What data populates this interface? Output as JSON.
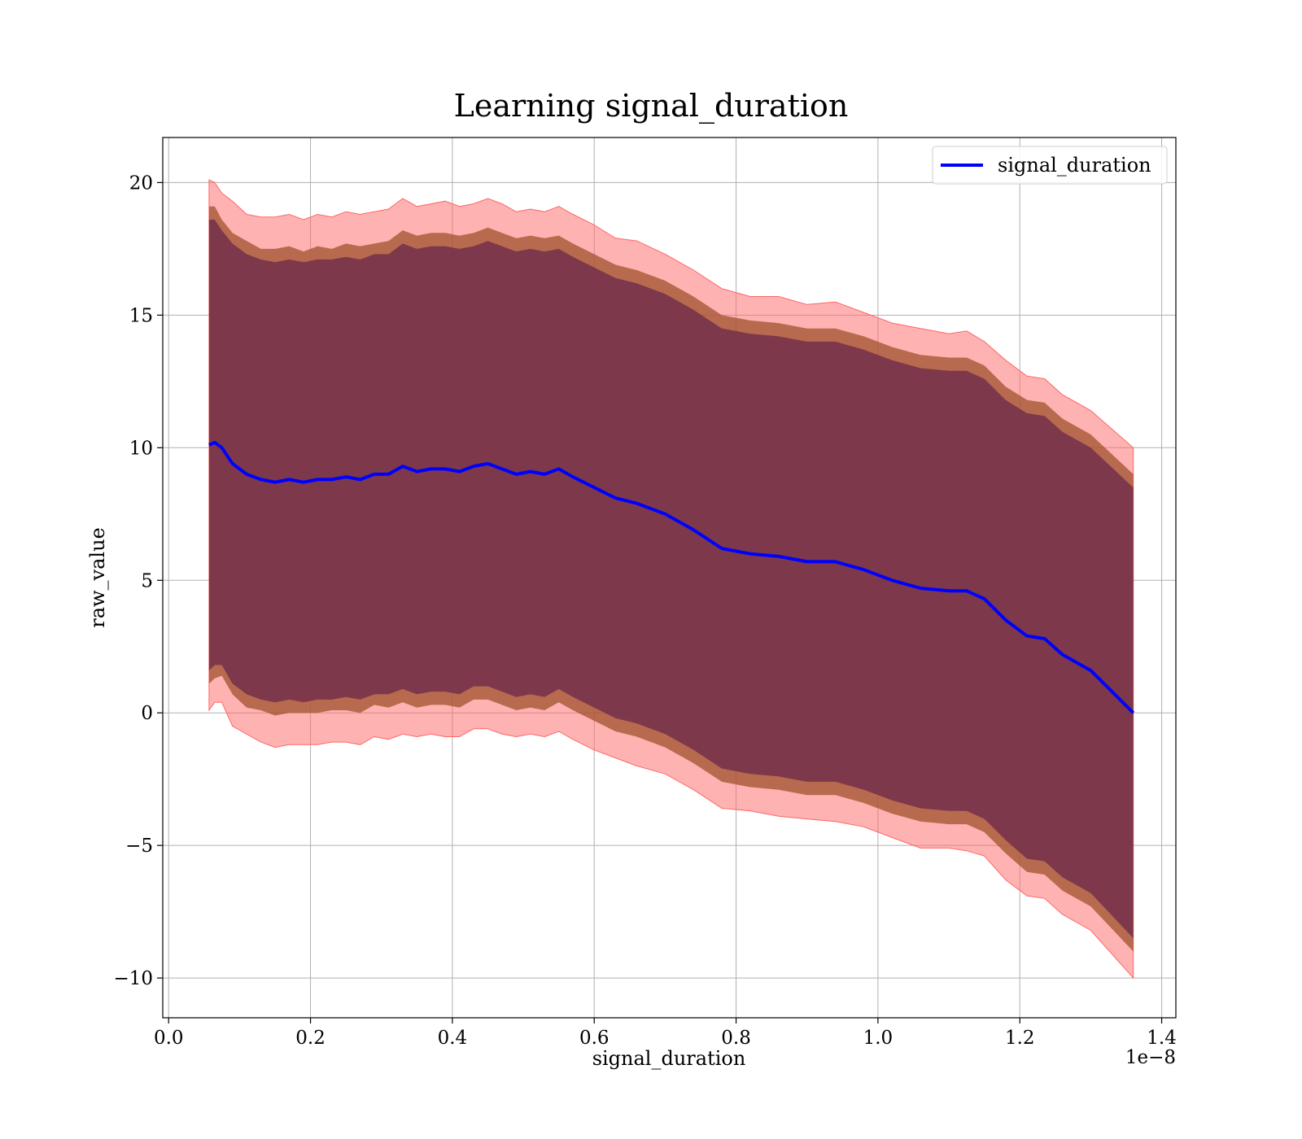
{
  "chart_data": {
    "type": "line",
    "title": "Learning signal_duration",
    "xlabel": "signal_duration",
    "ylabel": "raw_value",
    "x_offset_label": "1e−8",
    "xlim": [
      -0.0083,
      1.42
    ],
    "ylim": [
      -11.5,
      21.7
    ],
    "xticks": [
      0.0,
      0.2,
      0.4,
      0.6,
      0.8,
      1.0,
      1.2,
      1.4
    ],
    "xtick_labels": [
      "0.0",
      "0.2",
      "0.4",
      "0.6",
      "0.8",
      "1.0",
      "1.2",
      "1.4"
    ],
    "yticks": [
      -10,
      -5,
      0,
      5,
      10,
      15,
      20
    ],
    "ytick_labels": [
      "−10",
      "−5",
      "0",
      "5",
      "10",
      "15",
      "20"
    ],
    "grid": true,
    "legend": {
      "placement": "top-right",
      "entries": [
        "signal_duration"
      ]
    },
    "colors": {
      "mean_line": "#0000ff",
      "outer_band": "#ff6666",
      "middle_band": "#a0522d",
      "inner_band": "#6a2a4a"
    },
    "x": [
      0.057,
      0.065,
      0.075,
      0.09,
      0.11,
      0.13,
      0.15,
      0.17,
      0.19,
      0.21,
      0.23,
      0.25,
      0.27,
      0.29,
      0.31,
      0.33,
      0.35,
      0.37,
      0.39,
      0.41,
      0.43,
      0.45,
      0.47,
      0.49,
      0.51,
      0.53,
      0.55,
      0.57,
      0.6,
      0.63,
      0.66,
      0.7,
      0.74,
      0.78,
      0.82,
      0.86,
      0.9,
      0.94,
      0.98,
      1.02,
      1.06,
      1.1,
      1.125,
      1.15,
      1.18,
      1.21,
      1.235,
      1.26,
      1.3,
      1.36
    ],
    "series": [
      {
        "name": "signal_duration",
        "values": [
          10.1,
          10.2,
          10.0,
          9.4,
          9.0,
          8.8,
          8.7,
          8.8,
          8.7,
          8.8,
          8.8,
          8.9,
          8.8,
          9.0,
          9.0,
          9.3,
          9.1,
          9.2,
          9.2,
          9.1,
          9.3,
          9.4,
          9.2,
          9.0,
          9.1,
          9.0,
          9.2,
          8.9,
          8.5,
          8.1,
          7.9,
          7.5,
          6.9,
          6.2,
          6.0,
          5.9,
          5.7,
          5.7,
          5.4,
          5.0,
          4.7,
          4.6,
          4.6,
          4.3,
          3.5,
          2.9,
          2.8,
          2.2,
          1.6,
          0.0
        ],
        "band_outer": [
          10.0,
          9.8,
          9.6,
          9.9,
          9.8,
          9.9,
          10.0,
          10.0,
          9.9,
          10.0,
          9.9,
          10.0,
          10.0,
          9.9,
          10.0,
          10.1,
          10.0,
          10.0,
          10.1,
          10.0,
          9.9,
          10.0,
          10.0,
          9.9,
          9.9,
          9.9,
          9.9,
          9.9,
          9.9,
          9.8,
          9.9,
          9.8,
          9.8,
          9.8,
          9.7,
          9.8,
          9.7,
          9.8,
          9.7,
          9.7,
          9.8,
          9.7,
          9.8,
          9.7,
          9.8,
          9.8,
          9.8,
          9.8,
          9.8,
          10.0
        ],
        "band_middle": [
          9.0,
          8.9,
          8.6,
          8.7,
          8.8,
          8.7,
          8.8,
          8.8,
          8.7,
          8.8,
          8.7,
          8.8,
          8.8,
          8.7,
          8.8,
          8.9,
          8.9,
          8.9,
          8.9,
          8.9,
          8.8,
          8.9,
          8.9,
          8.9,
          8.9,
          8.9,
          8.8,
          8.8,
          8.8,
          8.8,
          8.8,
          8.8,
          8.8,
          8.8,
          8.8,
          8.8,
          8.8,
          8.8,
          8.8,
          8.8,
          8.8,
          8.8,
          8.8,
          8.8,
          8.8,
          8.9,
          8.9,
          8.9,
          8.9,
          9.0
        ],
        "band_inner": [
          8.5,
          8.4,
          8.2,
          8.3,
          8.3,
          8.3,
          8.3,
          8.3,
          8.3,
          8.3,
          8.3,
          8.3,
          8.3,
          8.3,
          8.3,
          8.4,
          8.4,
          8.4,
          8.4,
          8.4,
          8.3,
          8.4,
          8.4,
          8.4,
          8.4,
          8.4,
          8.3,
          8.3,
          8.3,
          8.3,
          8.3,
          8.3,
          8.3,
          8.3,
          8.3,
          8.3,
          8.3,
          8.3,
          8.3,
          8.3,
          8.3,
          8.3,
          8.3,
          8.3,
          8.3,
          8.4,
          8.4,
          8.4,
          8.4,
          8.5
        ]
      }
    ]
  }
}
